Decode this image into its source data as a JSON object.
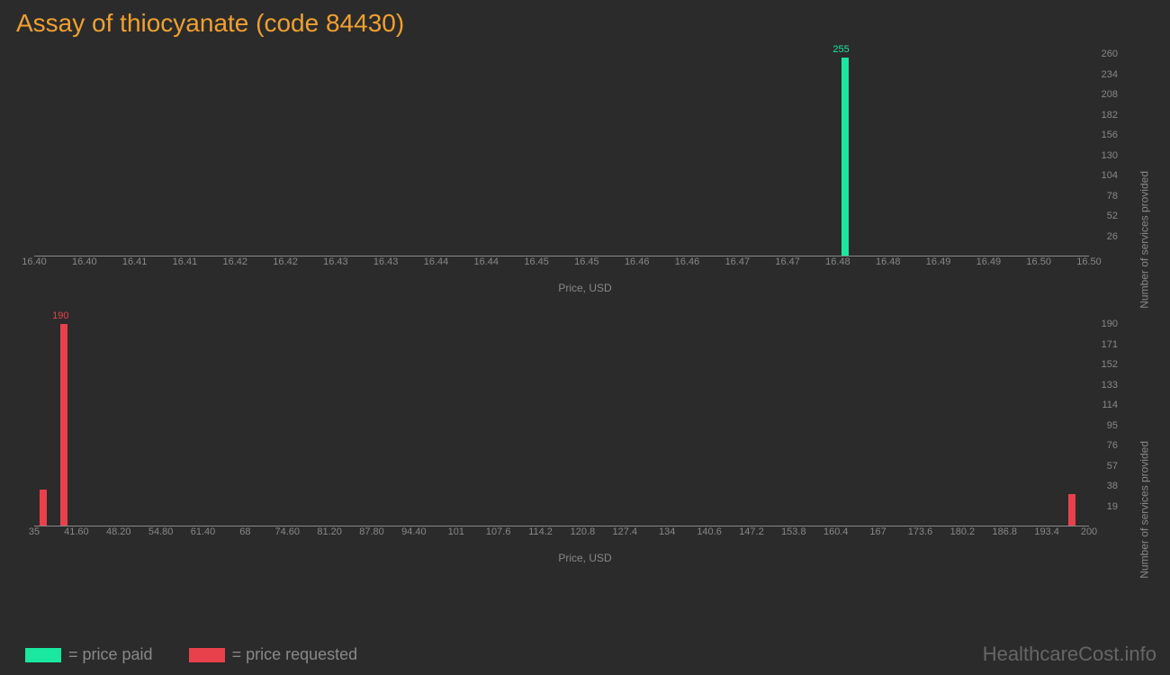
{
  "title": "Assay of thiocyanate (code 84430)",
  "colors": {
    "background": "#2b2b2b",
    "title": "#f0a030",
    "axis_text": "#888888",
    "axis_line": "#888888",
    "price_paid": "#1ae8a0",
    "price_requested": "#e8414c"
  },
  "chart_top": {
    "type": "bar",
    "x_label": "Price, USD",
    "y_label": "Number of services provided",
    "x_ticks": [
      "16.40",
      "16.40",
      "16.41",
      "16.41",
      "16.42",
      "16.42",
      "16.43",
      "16.43",
      "16.44",
      "16.44",
      "16.45",
      "16.45",
      "16.46",
      "16.46",
      "16.47",
      "16.47",
      "16.48",
      "16.48",
      "16.49",
      "16.49",
      "16.50",
      "16.50"
    ],
    "y_ticks": [
      26,
      52,
      78,
      104,
      130,
      156,
      182,
      208,
      234,
      260
    ],
    "y_max": 260,
    "bars": [
      {
        "x_pct": 76.5,
        "value": 255,
        "color": "#1ae8a0",
        "label": "255"
      }
    ]
  },
  "chart_bottom": {
    "type": "bar",
    "x_label": "Price, USD",
    "y_label": "Number of services provided",
    "x_ticks": [
      "35",
      "41.60",
      "48.20",
      "54.80",
      "61.40",
      "68",
      "74.60",
      "81.20",
      "87.80",
      "94.40",
      "101",
      "107.6",
      "114.2",
      "120.8",
      "127.4",
      "134",
      "140.6",
      "147.2",
      "153.8",
      "160.4",
      "167",
      "173.6",
      "180.2",
      "186.8",
      "193.4",
      "200"
    ],
    "y_ticks": [
      19,
      38,
      57,
      76,
      95,
      114,
      133,
      152,
      171,
      190
    ],
    "y_max": 190,
    "bars": [
      {
        "x_pct": 0.5,
        "value": 34,
        "color": "#e8414c",
        "label": ""
      },
      {
        "x_pct": 2.5,
        "value": 190,
        "color": "#e8414c",
        "label": "190"
      },
      {
        "x_pct": 98.0,
        "value": 30,
        "color": "#e8414c",
        "label": ""
      }
    ]
  },
  "legend": {
    "items": [
      {
        "color": "#1ae8a0",
        "label": "= price paid"
      },
      {
        "color": "#e8414c",
        "label": "= price requested"
      }
    ]
  },
  "watermark": "HealthcareCost.info"
}
